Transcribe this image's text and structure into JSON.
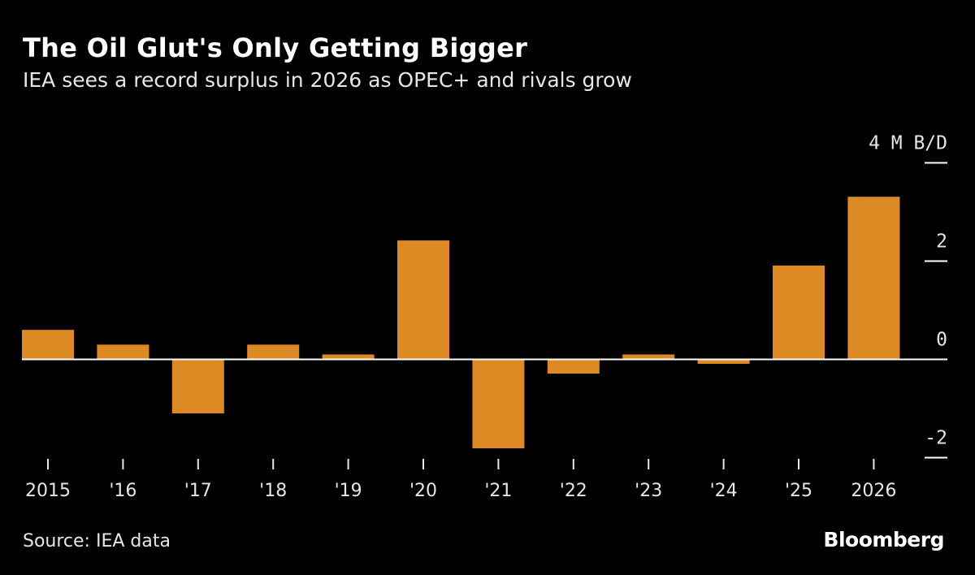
{
  "title": "The Oil Glut's Only Getting Bigger",
  "subtitle": "IEA sees a record surplus in 2026 as OPEC+ and rivals grow",
  "source": "Source: IEA data",
  "logo": "Bloomberg",
  "chart_data": {
    "type": "bar",
    "categories": [
      "2015",
      "'16",
      "'17",
      "'18",
      "'19",
      "'20",
      "'21",
      "'22",
      "'23",
      "'24",
      "'25",
      "2026"
    ],
    "values": [
      0.6,
      0.3,
      -1.1,
      0.3,
      0.1,
      2.42,
      -1.81,
      -0.29,
      0.1,
      -0.09,
      1.91,
      3.31
    ],
    "ylim": [
      -2,
      4
    ],
    "yticks": [
      -2,
      0,
      2,
      4
    ],
    "ytick_labels": [
      "-2",
      "0",
      "2",
      "4 M B/D"
    ],
    "y_axis_side": "right",
    "grid": false,
    "bar_color": "#dd8a25",
    "background": "#000000"
  }
}
